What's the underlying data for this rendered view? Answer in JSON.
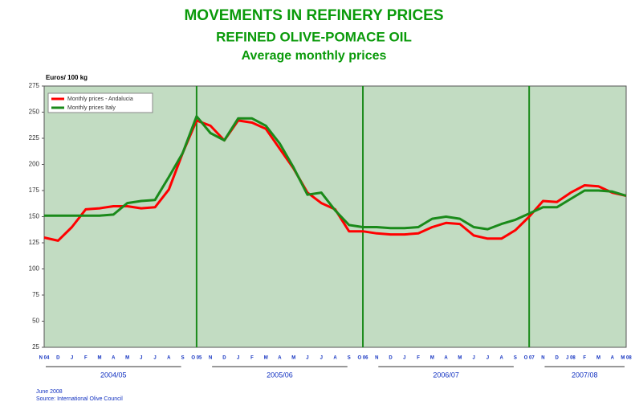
{
  "chart_data": {
    "type": "line",
    "title": "MOVEMENTS IN REFINERY PRICES",
    "subtitle": "REFINED OLIVE-POMACE OIL",
    "subtitle2": "Average monthly prices",
    "y_label": "Euros/ 100 kg",
    "categories": [
      "N 04",
      "D",
      "J",
      "F",
      "M",
      "A",
      "M",
      "J",
      "J",
      "A",
      "S",
      "O 05",
      "N",
      "D",
      "J",
      "F",
      "M",
      "A",
      "M",
      "J",
      "J",
      "A",
      "S",
      "O 06",
      "N",
      "D",
      "J",
      "F",
      "M",
      "A",
      "M",
      "J",
      "J",
      "A",
      "S",
      "O 07",
      "N",
      "D",
      "J 08",
      "F",
      "M",
      "A",
      "M 08"
    ],
    "crop_years": [
      "2004/05",
      "2005/06",
      "2006/07",
      "2007/08"
    ],
    "series": [
      {
        "name": "Monthly prices - Andalucia",
        "color": "#ff0000",
        "values": [
          130,
          127,
          140,
          157,
          158,
          160,
          160,
          158,
          159,
          176,
          211,
          242,
          237,
          223,
          242,
          240,
          234,
          215,
          196,
          173,
          163,
          157,
          136,
          136,
          134,
          133,
          133,
          134,
          140,
          144,
          143,
          132,
          129,
          129,
          137,
          150,
          165,
          164,
          173,
          180,
          179,
          173,
          170
        ]
      },
      {
        "name": "Monthly prices Italy",
        "color": "#1a8a1a",
        "values": [
          151,
          151,
          151,
          151,
          151,
          152,
          163,
          165,
          166,
          188,
          211,
          246,
          230,
          223,
          244,
          244,
          237,
          220,
          197,
          171,
          173,
          156,
          142,
          140,
          140,
          139,
          139,
          140,
          148,
          150,
          148,
          140,
          138,
          143,
          147,
          153,
          159,
          159,
          167,
          175,
          175,
          174,
          170
        ]
      }
    ],
    "ylim": [
      25,
      275
    ],
    "yticks": [
      25,
      50,
      75,
      100,
      125,
      150,
      175,
      200,
      225,
      250,
      275
    ],
    "footer": [
      "June 2008",
      "Source: International Olive Council"
    ]
  }
}
